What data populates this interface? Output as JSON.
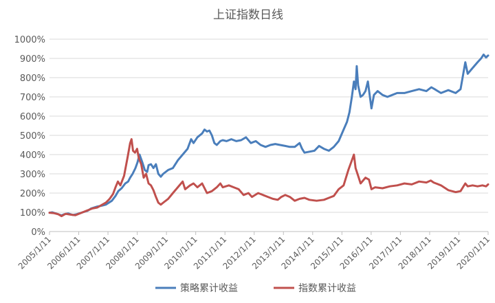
{
  "chart_data": {
    "type": "line",
    "title": "上证指数日线",
    "xlabel": "",
    "ylabel": "",
    "x_ticks": [
      "2005/1/11",
      "2006/1/11",
      "2007/1/11",
      "2008/1/11",
      "2009/1/11",
      "2010/1/11",
      "2011/1/11",
      "2012/1/11",
      "2013/1/11",
      "2014/1/11",
      "2015/1/11",
      "2016/1/11",
      "2017/1/11",
      "2018/1/11",
      "2019/1/11",
      "2020/1/11"
    ],
    "xlim": [
      "2005-01-11",
      "2020-01-11"
    ],
    "y_ticks": [
      "0%",
      "100%",
      "200%",
      "300%",
      "400%",
      "500%",
      "600%",
      "700%",
      "800%",
      "900%",
      "1000%"
    ],
    "ylim": [
      0,
      1000
    ],
    "grid": "horizontal",
    "legend": "bottom",
    "series": [
      {
        "name": "策略累计收益",
        "color": "#4a7ebb",
        "points": [
          [
            "2005-01-11",
            98
          ],
          [
            "2005-02-15",
            100
          ],
          [
            "2005-04-15",
            92
          ],
          [
            "2005-06-10",
            84
          ],
          [
            "2005-07-15",
            90
          ],
          [
            "2005-09-01",
            94
          ],
          [
            "2005-11-01",
            86
          ],
          [
            "2005-12-15",
            90
          ],
          [
            "2006-03-01",
            100
          ],
          [
            "2006-05-01",
            108
          ],
          [
            "2006-06-15",
            120
          ],
          [
            "2006-09-01",
            130
          ],
          [
            "2006-11-01",
            135
          ],
          [
            "2006-12-15",
            140
          ],
          [
            "2007-03-01",
            160
          ],
          [
            "2007-04-15",
            185
          ],
          [
            "2007-05-20",
            210
          ],
          [
            "2007-07-01",
            225
          ],
          [
            "2007-08-15",
            250
          ],
          [
            "2007-09-20",
            260
          ],
          [
            "2007-10-15",
            280
          ],
          [
            "2007-11-15",
            300
          ],
          [
            "2007-12-20",
            330
          ],
          [
            "2008-01-15",
            360
          ],
          [
            "2008-02-10",
            400
          ],
          [
            "2008-03-15",
            360
          ],
          [
            "2008-04-15",
            320
          ],
          [
            "2008-05-15",
            310
          ],
          [
            "2008-06-01",
            345
          ],
          [
            "2008-07-01",
            350
          ],
          [
            "2008-08-01",
            330
          ],
          [
            "2008-09-01",
            350
          ],
          [
            "2008-10-01",
            300
          ],
          [
            "2008-11-01",
            285
          ],
          [
            "2008-12-01",
            300
          ],
          [
            "2009-02-01",
            320
          ],
          [
            "2009-04-01",
            330
          ],
          [
            "2009-06-01",
            370
          ],
          [
            "2009-08-01",
            400
          ],
          [
            "2009-10-01",
            430
          ],
          [
            "2009-11-15",
            480
          ],
          [
            "2009-12-15",
            460
          ],
          [
            "2010-02-01",
            490
          ],
          [
            "2010-04-01",
            510
          ],
          [
            "2010-05-01",
            530
          ],
          [
            "2010-06-01",
            520
          ],
          [
            "2010-07-01",
            525
          ],
          [
            "2010-08-01",
            500
          ],
          [
            "2010-09-01",
            460
          ],
          [
            "2010-10-01",
            450
          ],
          [
            "2010-11-15",
            470
          ],
          [
            "2010-12-15",
            475
          ],
          [
            "2011-02-01",
            470
          ],
          [
            "2011-04-01",
            480
          ],
          [
            "2011-06-01",
            470
          ],
          [
            "2011-08-01",
            475
          ],
          [
            "2011-10-01",
            490
          ],
          [
            "2011-12-01",
            460
          ],
          [
            "2012-02-01",
            470
          ],
          [
            "2012-04-01",
            450
          ],
          [
            "2012-06-01",
            440
          ],
          [
            "2012-08-01",
            450
          ],
          [
            "2012-10-01",
            455
          ],
          [
            "2012-12-01",
            450
          ],
          [
            "2013-02-01",
            445
          ],
          [
            "2013-04-01",
            440
          ],
          [
            "2013-06-01",
            440
          ],
          [
            "2013-08-01",
            460
          ],
          [
            "2013-09-01",
            430
          ],
          [
            "2013-10-01",
            410
          ],
          [
            "2013-12-01",
            415
          ],
          [
            "2014-02-01",
            420
          ],
          [
            "2014-04-01",
            445
          ],
          [
            "2014-06-01",
            430
          ],
          [
            "2014-08-01",
            420
          ],
          [
            "2014-10-01",
            440
          ],
          [
            "2014-12-01",
            470
          ],
          [
            "2015-02-01",
            530
          ],
          [
            "2015-03-15",
            570
          ],
          [
            "2015-04-15",
            620
          ],
          [
            "2015-05-15",
            700
          ],
          [
            "2015-06-10",
            780
          ],
          [
            "2015-07-01",
            740
          ],
          [
            "2015-07-15",
            860
          ],
          [
            "2015-08-01",
            760
          ],
          [
            "2015-09-01",
            700
          ],
          [
            "2015-10-01",
            710
          ],
          [
            "2015-11-01",
            730
          ],
          [
            "2015-12-01",
            780
          ],
          [
            "2016-01-15",
            640
          ],
          [
            "2016-02-15",
            710
          ],
          [
            "2016-04-01",
            730
          ],
          [
            "2016-06-01",
            710
          ],
          [
            "2016-08-01",
            700
          ],
          [
            "2016-10-01",
            710
          ],
          [
            "2016-12-01",
            720
          ],
          [
            "2017-03-01",
            720
          ],
          [
            "2017-06-01",
            730
          ],
          [
            "2017-09-01",
            740
          ],
          [
            "2017-12-01",
            730
          ],
          [
            "2018-02-01",
            750
          ],
          [
            "2018-03-15",
            740
          ],
          [
            "2018-06-01",
            720
          ],
          [
            "2018-09-01",
            735
          ],
          [
            "2018-12-01",
            720
          ],
          [
            "2019-02-01",
            740
          ],
          [
            "2019-04-01",
            880
          ],
          [
            "2019-05-01",
            820
          ],
          [
            "2019-07-01",
            850
          ],
          [
            "2019-09-01",
            880
          ],
          [
            "2019-10-15",
            900
          ],
          [
            "2019-11-15",
            920
          ],
          [
            "2019-12-15",
            905
          ],
          [
            "2020-01-11",
            915
          ]
        ]
      },
      {
        "name": "指数累计收益",
        "color": "#c0504d",
        "points": [
          [
            "2005-01-11",
            98
          ],
          [
            "2005-03-01",
            96
          ],
          [
            "2005-05-01",
            90
          ],
          [
            "2005-06-10",
            80
          ],
          [
            "2005-08-01",
            92
          ],
          [
            "2005-10-01",
            88
          ],
          [
            "2005-12-01",
            85
          ],
          [
            "2006-03-01",
            100
          ],
          [
            "2006-05-01",
            110
          ],
          [
            "2006-07-01",
            120
          ],
          [
            "2006-09-01",
            125
          ],
          [
            "2006-11-01",
            140
          ],
          [
            "2006-12-15",
            150
          ],
          [
            "2007-02-01",
            170
          ],
          [
            "2007-03-15",
            195
          ],
          [
            "2007-04-15",
            230
          ],
          [
            "2007-05-15",
            260
          ],
          [
            "2007-06-15",
            240
          ],
          [
            "2007-08-01",
            290
          ],
          [
            "2007-09-15",
            390
          ],
          [
            "2007-10-15",
            460
          ],
          [
            "2007-11-01",
            480
          ],
          [
            "2007-11-20",
            420
          ],
          [
            "2007-12-15",
            410
          ],
          [
            "2008-01-10",
            430
          ],
          [
            "2008-02-01",
            380
          ],
          [
            "2008-03-01",
            350
          ],
          [
            "2008-04-01",
            280
          ],
          [
            "2008-05-01",
            300
          ],
          [
            "2008-06-01",
            250
          ],
          [
            "2008-07-01",
            240
          ],
          [
            "2008-08-01",
            215
          ],
          [
            "2008-09-01",
            180
          ],
          [
            "2008-10-01",
            150
          ],
          [
            "2008-11-01",
            140
          ],
          [
            "2008-12-01",
            150
          ],
          [
            "2009-02-01",
            170
          ],
          [
            "2009-04-01",
            200
          ],
          [
            "2009-06-01",
            230
          ],
          [
            "2009-08-01",
            260
          ],
          [
            "2009-09-01",
            220
          ],
          [
            "2009-11-01",
            240
          ],
          [
            "2009-12-15",
            250
          ],
          [
            "2010-02-01",
            230
          ],
          [
            "2010-04-01",
            250
          ],
          [
            "2010-06-01",
            200
          ],
          [
            "2010-08-01",
            210
          ],
          [
            "2010-10-01",
            230
          ],
          [
            "2010-11-15",
            250
          ],
          [
            "2010-12-15",
            230
          ],
          [
            "2011-03-01",
            240
          ],
          [
            "2011-05-01",
            230
          ],
          [
            "2011-07-01",
            220
          ],
          [
            "2011-09-01",
            190
          ],
          [
            "2011-11-01",
            200
          ],
          [
            "2011-12-15",
            180
          ],
          [
            "2012-03-01",
            200
          ],
          [
            "2012-05-01",
            190
          ],
          [
            "2012-07-01",
            180
          ],
          [
            "2012-09-01",
            170
          ],
          [
            "2012-11-01",
            165
          ],
          [
            "2012-12-15",
            180
          ],
          [
            "2013-02-01",
            190
          ],
          [
            "2013-04-01",
            180
          ],
          [
            "2013-06-01",
            160
          ],
          [
            "2013-08-01",
            170
          ],
          [
            "2013-10-01",
            175
          ],
          [
            "2013-12-01",
            165
          ],
          [
            "2014-03-01",
            160
          ],
          [
            "2014-06-01",
            165
          ],
          [
            "2014-08-01",
            175
          ],
          [
            "2014-10-01",
            185
          ],
          [
            "2014-12-01",
            220
          ],
          [
            "2015-02-01",
            240
          ],
          [
            "2015-04-01",
            320
          ],
          [
            "2015-05-15",
            370
          ],
          [
            "2015-06-10",
            400
          ],
          [
            "2015-07-01",
            330
          ],
          [
            "2015-08-01",
            290
          ],
          [
            "2015-09-01",
            250
          ],
          [
            "2015-11-01",
            280
          ],
          [
            "2015-12-15",
            270
          ],
          [
            "2016-01-15",
            220
          ],
          [
            "2016-03-01",
            230
          ],
          [
            "2016-06-01",
            225
          ],
          [
            "2016-09-01",
            235
          ],
          [
            "2016-12-01",
            240
          ],
          [
            "2017-03-01",
            250
          ],
          [
            "2017-06-01",
            245
          ],
          [
            "2017-09-01",
            260
          ],
          [
            "2017-12-01",
            255
          ],
          [
            "2018-01-25",
            265
          ],
          [
            "2018-03-01",
            255
          ],
          [
            "2018-06-01",
            240
          ],
          [
            "2018-09-01",
            215
          ],
          [
            "2018-12-01",
            205
          ],
          [
            "2019-02-01",
            210
          ],
          [
            "2019-04-01",
            250
          ],
          [
            "2019-05-01",
            235
          ],
          [
            "2019-07-01",
            240
          ],
          [
            "2019-09-01",
            235
          ],
          [
            "2019-11-01",
            240
          ],
          [
            "2019-12-15",
            235
          ],
          [
            "2020-01-11",
            245
          ]
        ]
      }
    ]
  }
}
